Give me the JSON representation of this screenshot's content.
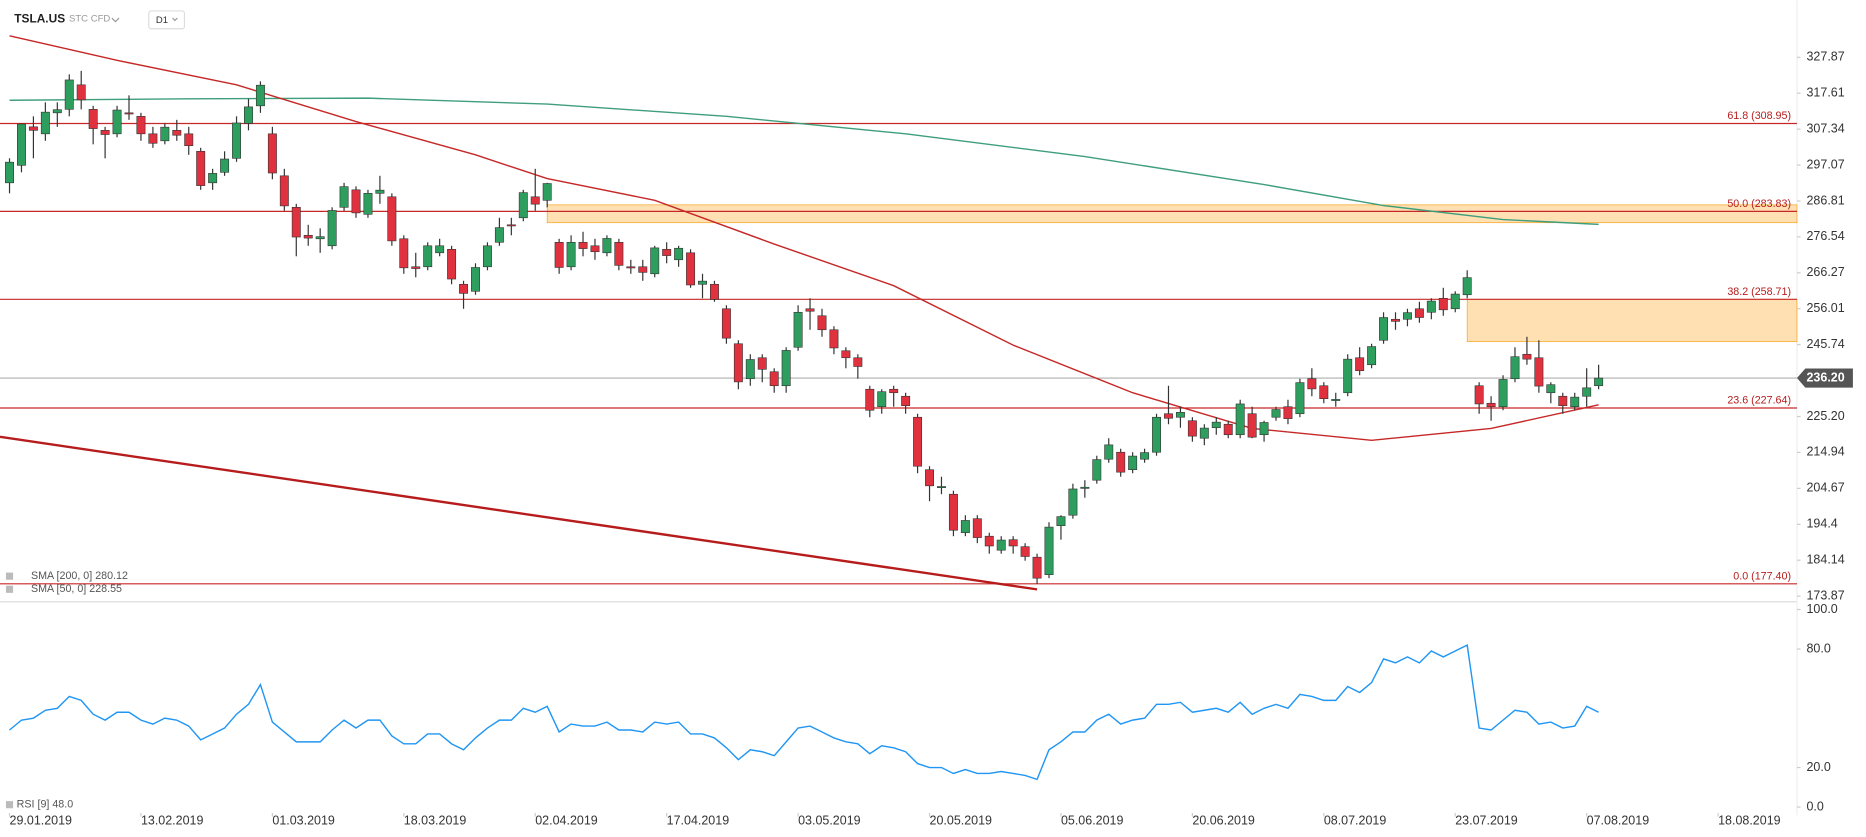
{
  "header": {
    "symbol": "TSLA.US",
    "market": "STC CFD",
    "interval": "D1"
  },
  "chart_data": {
    "type": "candlestick",
    "up_color": "#2e9e5e",
    "down_color": "#e0313f",
    "candles": [
      [
        292,
        299,
        289,
        297.9
      ],
      [
        297,
        309,
        295,
        308.8
      ],
      [
        308,
        311,
        299,
        307
      ],
      [
        306,
        315,
        304,
        312.2
      ],
      [
        312,
        315,
        308,
        312.9
      ],
      [
        313,
        323,
        311,
        321.4
      ],
      [
        320,
        324,
        313,
        315.7
      ],
      [
        313,
        314,
        303,
        307.5
      ],
      [
        307,
        308,
        299,
        305.8
      ],
      [
        306,
        314,
        305,
        312.8
      ],
      [
        312,
        317,
        310,
        311.9
      ],
      [
        311,
        312,
        304,
        306
      ],
      [
        306,
        308,
        302,
        303.3
      ],
      [
        304,
        309,
        303,
        307.9
      ],
      [
        307,
        310,
        304,
        305.6
      ],
      [
        306,
        308,
        300,
        302.6
      ],
      [
        301,
        302,
        290,
        291.2
      ],
      [
        292,
        296,
        290,
        294.7
      ],
      [
        295,
        301,
        294,
        298.8
      ],
      [
        299,
        311,
        298,
        309.1
      ],
      [
        309,
        316,
        307,
        313.7
      ],
      [
        314,
        321,
        312,
        319.9
      ],
      [
        306,
        308,
        293,
        294.8
      ],
      [
        294,
        296,
        284,
        285.4
      ],
      [
        285,
        286,
        271,
        276.5
      ],
      [
        277,
        280,
        274,
        276.2
      ],
      [
        276,
        279,
        272,
        276.6
      ],
      [
        274,
        285,
        273,
        284.1
      ],
      [
        285,
        292,
        284,
        290.9
      ],
      [
        290,
        291,
        282,
        283.4
      ],
      [
        283,
        290,
        282,
        289
      ],
      [
        289,
        294,
        286,
        289.9
      ],
      [
        288,
        289,
        274,
        275.4
      ],
      [
        276,
        277,
        266,
        267.7
      ],
      [
        268,
        272,
        265,
        267.5
      ],
      [
        268,
        275,
        267,
        274
      ],
      [
        272,
        276,
        271,
        274
      ],
      [
        273,
        274,
        263,
        264.5
      ],
      [
        263,
        264,
        256,
        260.4
      ],
      [
        261,
        269,
        260,
        267.8
      ],
      [
        268,
        275,
        267,
        274
      ],
      [
        275,
        282,
        274,
        279.2
      ],
      [
        280,
        282,
        277,
        279.9
      ],
      [
        282,
        290,
        281,
        289.2
      ],
      [
        288,
        296,
        284,
        285.9
      ],
      [
        287,
        292,
        285,
        291.8
      ],
      [
        275,
        276,
        266,
        267.8
      ],
      [
        268,
        277,
        267,
        275
      ],
      [
        275,
        278,
        271,
        273.2
      ],
      [
        274,
        276,
        270,
        272.3
      ],
      [
        272,
        277,
        271,
        276.1
      ],
      [
        275,
        276,
        267,
        268.4
      ],
      [
        268,
        270,
        266,
        267.7
      ],
      [
        268,
        270,
        264,
        266.4
      ],
      [
        266,
        274,
        265,
        273.4
      ],
      [
        273,
        275,
        269,
        271.2
      ],
      [
        270,
        274,
        268,
        273.3
      ],
      [
        272,
        273,
        262,
        262.8
      ],
      [
        263,
        266,
        259,
        263.9
      ],
      [
        263,
        264,
        258,
        258.7
      ],
      [
        256,
        257,
        246,
        247.6
      ],
      [
        246,
        247,
        233,
        235.1
      ],
      [
        236,
        243,
        234,
        241.5
      ],
      [
        242,
        243,
        235,
        238.7
      ],
      [
        238,
        239,
        232,
        234
      ],
      [
        234,
        245,
        232,
        244.1
      ],
      [
        245,
        257,
        244,
        255
      ],
      [
        256,
        259,
        250,
        255.3
      ],
      [
        254,
        256,
        248,
        250
      ],
      [
        250,
        251,
        243,
        244.8
      ],
      [
        244,
        245,
        239,
        242
      ],
      [
        242,
        243,
        236,
        239.5
      ],
      [
        233,
        234,
        225,
        227
      ],
      [
        228,
        233,
        226,
        232.3
      ],
      [
        233,
        234,
        228,
        232
      ],
      [
        231,
        232,
        226,
        228.3
      ],
      [
        225,
        226,
        209,
        211
      ],
      [
        210,
        211,
        201,
        205.4
      ],
      [
        205,
        208,
        203,
        205.2
      ],
      [
        203,
        204,
        191,
        192.7
      ],
      [
        192,
        197,
        191,
        195.5
      ],
      [
        196,
        197,
        189,
        190.6
      ],
      [
        191,
        192,
        186,
        188.2
      ],
      [
        187,
        191,
        186,
        189.9
      ],
      [
        190,
        191,
        186,
        188.2
      ],
      [
        188,
        189,
        184,
        185.2
      ],
      [
        185,
        186,
        177.4,
        179
      ],
      [
        180,
        195,
        179,
        193.6
      ],
      [
        194,
        197,
        190,
        196.6
      ],
      [
        197,
        206,
        196,
        204.5
      ],
      [
        205,
        207,
        202,
        205
      ],
      [
        207,
        214,
        206,
        212.9
      ],
      [
        213,
        219,
        212,
        217.1
      ],
      [
        215,
        216,
        208,
        209.3
      ],
      [
        210,
        215,
        209,
        213.9
      ],
      [
        213,
        216,
        212,
        214.9
      ],
      [
        215,
        226,
        214,
        225
      ],
      [
        226,
        234,
        223,
        224.7
      ],
      [
        225,
        228,
        222,
        226.4
      ],
      [
        224,
        225,
        218,
        219.6
      ],
      [
        219,
        223,
        217,
        221.9
      ],
      [
        222,
        225,
        220,
        223.6
      ],
      [
        223,
        224,
        219,
        220
      ],
      [
        220,
        230,
        219,
        228.8
      ],
      [
        226,
        228,
        219,
        219.3
      ],
      [
        220,
        224,
        218,
        223.5
      ],
      [
        225,
        228,
        224,
        227.2
      ],
      [
        228,
        230,
        223,
        224.6
      ],
      [
        226,
        236,
        225,
        234.9
      ],
      [
        236,
        239,
        231,
        233.1
      ],
      [
        234,
        235,
        229,
        230.3
      ],
      [
        230,
        232,
        228,
        230.1
      ],
      [
        232,
        243,
        231,
        241.6
      ],
      [
        242,
        245,
        237,
        238.3
      ],
      [
        240,
        246,
        239,
        245.2
      ],
      [
        247,
        255,
        246,
        253.5
      ],
      [
        253,
        255,
        250,
        252.4
      ],
      [
        253,
        256,
        251,
        254.9
      ],
      [
        256,
        258,
        252,
        253.5
      ],
      [
        255,
        259,
        253,
        258.2
      ],
      [
        259,
        262,
        254,
        255.7
      ],
      [
        256,
        261,
        255,
        260.2
      ],
      [
        260,
        267,
        259,
        264.9
      ],
      [
        234,
        235,
        226,
        228.8
      ],
      [
        229,
        231,
        224,
        228
      ],
      [
        228,
        237,
        227,
        235.8
      ],
      [
        236,
        245,
        235,
        242.3
      ],
      [
        243,
        248,
        240,
        241.6
      ],
      [
        242,
        247,
        232,
        233.9
      ],
      [
        232,
        235,
        229,
        234.3
      ],
      [
        231,
        232,
        226,
        228.3
      ],
      [
        228,
        232,
        227,
        230.75
      ],
      [
        231,
        239,
        228,
        233.4
      ],
      [
        234,
        240,
        233,
        236.2
      ]
    ],
    "ylim": [
      172.43,
      337.39
    ],
    "yticks": [
      327.87,
      317.61,
      307.34,
      297.07,
      286.81,
      276.54,
      266.27,
      256.01,
      245.74,
      {
        "value": 225.2,
        "label": "225.20"
      },
      214.94,
      204.67,
      194.4,
      184.14,
      173.87
    ],
    "xticks": [
      {
        "value": 0,
        "label": "29.01.2019"
      },
      {
        "value": 11,
        "label": "13.02.2019"
      },
      {
        "value": 22,
        "label": "01.03.2019"
      },
      {
        "value": 33,
        "label": "18.03.2019"
      },
      {
        "value": 44,
        "label": "02.04.2019"
      },
      {
        "value": 55,
        "label": "17.04.2019"
      },
      {
        "value": 66,
        "label": "03.05.2019"
      },
      {
        "value": 77,
        "label": "20.05.2019"
      },
      {
        "value": 88,
        "label": "05.06.2019"
      },
      {
        "value": 99,
        "label": "20.06.2019"
      },
      {
        "value": 110,
        "label": "08.07.2019"
      },
      {
        "value": 121,
        "label": "23.07.2019"
      },
      {
        "value": 132,
        "label": "07.08.2019"
      },
      {
        "value": 143,
        "label": "18.08.2019"
      }
    ],
    "last_price": {
      "value": 236.2,
      "label": "236.20"
    },
    "fib": [
      {
        "value": 308.95,
        "label": "61.8 (308.95)"
      },
      {
        "value": 283.83,
        "label": "50.0 (283.83)"
      },
      {
        "value": 258.71,
        "label": "38.2 (258.71)"
      },
      {
        "value": 227.64,
        "label": "23.6 (227.64)"
      },
      {
        "value": 177.4,
        "label": "0.0 (177.40)"
      }
    ],
    "zones": [
      {
        "start": 45,
        "top": 285.7,
        "bottom": 280.6
      },
      {
        "start": 122,
        "top": 258.71,
        "bottom": 246.6
      }
    ],
    "trendline": {
      "x": [
        -0.8,
        86
      ],
      "values": [
        219.4,
        175.8
      ],
      "color": "#b71c1c"
    },
    "sma200": {
      "name": "SMA [200, 0] 280.12",
      "color": "#3f9e7c",
      "x": [
        0,
        15,
        30,
        45,
        60,
        75,
        90,
        105,
        115,
        125,
        133
      ],
      "values": [
        315.6,
        316,
        316.2,
        314.5,
        311,
        306,
        299.5,
        291.5,
        285.5,
        281.5,
        280.12
      ]
    },
    "sma50": {
      "name": "SMA [50, 0] 228.55",
      "color": "#c62828",
      "x": [
        0,
        9,
        19,
        29,
        39,
        45,
        54,
        64,
        74,
        84,
        94,
        104,
        114,
        124,
        133
      ],
      "values": [
        334,
        327,
        320,
        309.5,
        300,
        293.2,
        287,
        274.5,
        262.6,
        245.6,
        232,
        221.8,
        218.4,
        221.8,
        228.55
      ]
    },
    "rsi": {
      "name": "RSI [9] 48.0",
      "color": "#2196f3",
      "ylim": [
        0,
        100
      ],
      "yticks": [
        {
          "value": 100,
          "label": "100.0"
        },
        {
          "value": 80,
          "label": "80.0"
        },
        {
          "value": 20,
          "label": "20.0"
        },
        {
          "value": 0,
          "label": "0.0"
        }
      ],
      "values": [
        39,
        44,
        45,
        49,
        50,
        56,
        54,
        47,
        44,
        48,
        48,
        44,
        42,
        45,
        44,
        41,
        34,
        37,
        40,
        47,
        52,
        62,
        43,
        38,
        33,
        33,
        33,
        39,
        44,
        40,
        44,
        44,
        36,
        32,
        32,
        37,
        37,
        32,
        29,
        35,
        40,
        44,
        44,
        50,
        48,
        51,
        38,
        42,
        41,
        41,
        43,
        39,
        39,
        38,
        43,
        42,
        43,
        37,
        37,
        35,
        30,
        24,
        29,
        28,
        26,
        33,
        40,
        41,
        38,
        35,
        33,
        32,
        27,
        31,
        30,
        28,
        22,
        20,
        20,
        17,
        19,
        17,
        17,
        18,
        17,
        16,
        14,
        29,
        33,
        38,
        38,
        44,
        47,
        42,
        44,
        45,
        52,
        52,
        53,
        48,
        49,
        50,
        48,
        53,
        47,
        50,
        52,
        50,
        57,
        56,
        54,
        54,
        61,
        58,
        63,
        75,
        73,
        76,
        73,
        79,
        76,
        79,
        82,
        40,
        39,
        44,
        49,
        48,
        42,
        43,
        40,
        41,
        51,
        48
      ]
    }
  }
}
